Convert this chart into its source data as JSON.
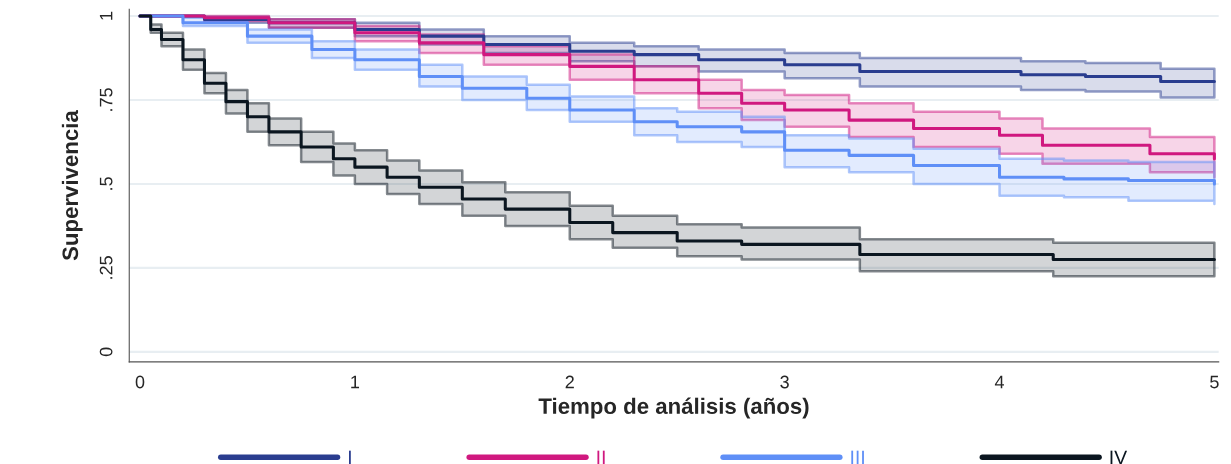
{
  "chart_data": {
    "type": "step",
    "xlabel": "Tiempo de análisis (años)",
    "ylabel": "Supervivencia",
    "xlim": [
      -0.05,
      5.02
    ],
    "xticks": [
      0,
      1,
      2,
      3,
      4,
      5
    ],
    "ylim": [
      -0.03,
      1.02
    ],
    "yticks": [
      0,
      {
        "value": 0.25,
        "label": ".25"
      },
      {
        "value": 0.5,
        "label": ".5"
      },
      {
        "value": 0.75,
        "label": ".75"
      },
      1
    ],
    "grid": "y",
    "legend": "bottom",
    "series": [
      {
        "name": "I",
        "color": "#2a3d8f",
        "x": [
          0,
          0.3,
          0.6,
          1,
          1.3,
          1.6,
          2,
          2.3,
          2.6,
          3,
          3.35,
          3.7,
          4.1,
          4.4,
          4.75,
          5
        ],
        "values": [
          1,
          0.99,
          0.98,
          0.96,
          0.94,
          0.915,
          0.895,
          0.885,
          0.87,
          0.855,
          0.835,
          0.835,
          0.825,
          0.82,
          0.805,
          0.805
        ],
        "lower": [
          1,
          0.98,
          0.965,
          0.94,
          0.915,
          0.89,
          0.865,
          0.85,
          0.835,
          0.815,
          0.79,
          0.79,
          0.78,
          0.775,
          0.757,
          0.757
        ],
        "upper": [
          1,
          0.998,
          0.99,
          0.98,
          0.96,
          0.94,
          0.92,
          0.91,
          0.9,
          0.89,
          0.875,
          0.875,
          0.865,
          0.86,
          0.843,
          0.843
        ]
      },
      {
        "name": "II",
        "color": "#d0187f",
        "x": [
          0,
          0.3,
          0.6,
          1,
          1.3,
          1.6,
          2,
          2.3,
          2.6,
          2.8,
          3,
          3.3,
          3.6,
          4,
          4.2,
          4.7,
          5
        ],
        "values": [
          1,
          0.995,
          0.98,
          0.95,
          0.92,
          0.885,
          0.85,
          0.81,
          0.77,
          0.74,
          0.72,
          0.69,
          0.665,
          0.645,
          0.615,
          0.59,
          0.575
        ],
        "lower": [
          1,
          0.985,
          0.965,
          0.925,
          0.89,
          0.855,
          0.81,
          0.77,
          0.725,
          0.69,
          0.67,
          0.64,
          0.61,
          0.59,
          0.56,
          0.535,
          0.52
        ],
        "upper": [
          1,
          1,
          0.99,
          0.97,
          0.945,
          0.91,
          0.885,
          0.85,
          0.81,
          0.78,
          0.765,
          0.74,
          0.715,
          0.695,
          0.665,
          0.64,
          0.63
        ]
      },
      {
        "name": "III",
        "color": "#5f8ff7",
        "x": [
          0,
          0.2,
          0.5,
          0.8,
          1,
          1.3,
          1.5,
          1.8,
          2,
          2.3,
          2.5,
          2.8,
          3,
          3.3,
          3.6,
          4,
          4.3,
          4.6,
          5
        ],
        "values": [
          1,
          0.98,
          0.94,
          0.9,
          0.87,
          0.82,
          0.785,
          0.755,
          0.72,
          0.685,
          0.67,
          0.655,
          0.6,
          0.585,
          0.555,
          0.52,
          0.515,
          0.51,
          0.5
        ],
        "lower": [
          1,
          0.97,
          0.92,
          0.875,
          0.84,
          0.79,
          0.75,
          0.72,
          0.685,
          0.645,
          0.625,
          0.61,
          0.55,
          0.535,
          0.5,
          0.465,
          0.46,
          0.45,
          0.44
        ],
        "upper": [
          1,
          0.995,
          0.96,
          0.925,
          0.9,
          0.855,
          0.82,
          0.795,
          0.76,
          0.725,
          0.715,
          0.7,
          0.645,
          0.635,
          0.605,
          0.575,
          0.57,
          0.565,
          0.56
        ]
      },
      {
        "name": "IV",
        "color": "#0b1620",
        "x": [
          0,
          0.05,
          0.1,
          0.2,
          0.3,
          0.4,
          0.5,
          0.6,
          0.75,
          0.9,
          1,
          1.15,
          1.3,
          1.5,
          1.7,
          2,
          2.2,
          2.5,
          2.8,
          3,
          3.35,
          4.05,
          4.25,
          5
        ],
        "values": [
          1,
          0.96,
          0.93,
          0.87,
          0.8,
          0.745,
          0.7,
          0.655,
          0.61,
          0.575,
          0.55,
          0.52,
          0.49,
          0.455,
          0.425,
          0.385,
          0.355,
          0.33,
          0.32,
          0.32,
          0.29,
          0.29,
          0.275,
          0.275
        ],
        "lower": [
          1,
          0.95,
          0.91,
          0.84,
          0.77,
          0.71,
          0.655,
          0.615,
          0.565,
          0.525,
          0.5,
          0.47,
          0.44,
          0.405,
          0.375,
          0.335,
          0.31,
          0.285,
          0.275,
          0.275,
          0.24,
          0.24,
          0.225,
          0.225
        ],
        "upper": [
          1,
          0.975,
          0.95,
          0.9,
          0.83,
          0.78,
          0.74,
          0.695,
          0.655,
          0.62,
          0.6,
          0.57,
          0.54,
          0.505,
          0.475,
          0.435,
          0.405,
          0.38,
          0.37,
          0.37,
          0.335,
          0.335,
          0.325,
          0.325
        ]
      }
    ]
  }
}
